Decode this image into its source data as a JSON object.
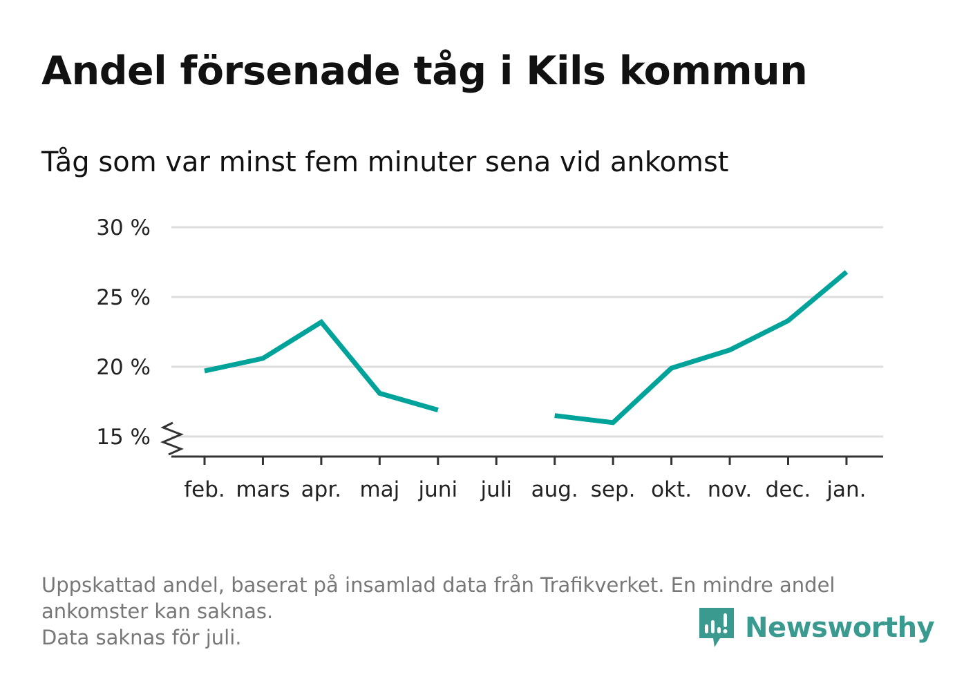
{
  "title": "Andel försenade tåg i Kils kommun",
  "subtitle": "Tåg som var minst fem minuter sena vid ankomst",
  "footnote": {
    "line1": "Uppskattad andel, baserat på insamlad data från Trafikverket. En mindre andel",
    "line2": "ankomster kan saknas.",
    "line3": "Data saknas för juli."
  },
  "logo": {
    "text": "Newsworthy",
    "icon": "newsworthy-chat-chart-icon",
    "color": "#3a9a8f"
  },
  "colors": {
    "series": "#00a39a",
    "grid": "#dddddd",
    "axis": "#333333"
  },
  "chart_data": {
    "type": "line",
    "title": "Andel försenade tåg i Kils kommun",
    "subtitle": "Tåg som var minst fem minuter sena vid ankomst",
    "categories": [
      "feb.",
      "mars",
      "apr.",
      "maj",
      "juni",
      "juli",
      "aug.",
      "sep.",
      "okt.",
      "nov.",
      "dec.",
      "jan."
    ],
    "series": [
      {
        "values": [
          19.7,
          20.6,
          23.2,
          18.1,
          16.9,
          null,
          16.5,
          16.0,
          19.9,
          21.2,
          23.3,
          26.8
        ]
      }
    ],
    "yticks": [
      15,
      20,
      25,
      30
    ],
    "ytick_labels": [
      "15 %",
      "20 %",
      "25 %",
      "30 %"
    ],
    "ylim": [
      13.5,
      30
    ],
    "axis_break": true,
    "grid": true,
    "legend": "none",
    "xlabel": "",
    "ylabel": ""
  }
}
